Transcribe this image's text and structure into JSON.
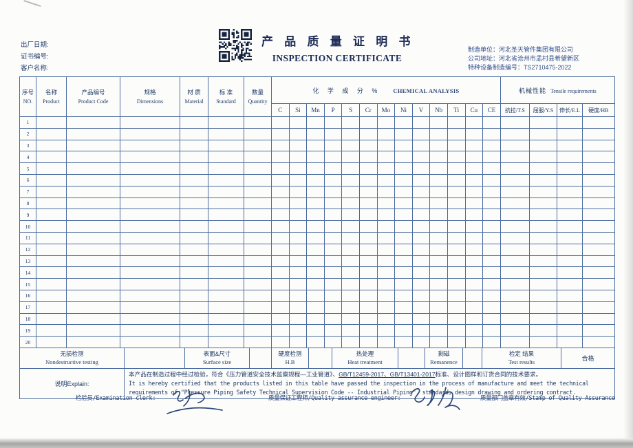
{
  "colors": {
    "ink_navy": "#1c2b55",
    "line_blue": "#4a6b9f",
    "text_blue": "#2b4472"
  },
  "icons": {
    "qr": "qr-code-image"
  },
  "page": {
    "header_left": {
      "date_label": "出厂日期:",
      "cert_no_label": "证书编号:",
      "customer_label": "客户名称:"
    },
    "title": {
      "cn": "产 品 质 量 证 明 书",
      "en": "INSPECTION CERTIFICATE"
    },
    "header_right": {
      "manufacturer": "制造单位：河北圣天管件集团有限公司",
      "address": "公司地址：河北省沧州市孟村县希望新区",
      "equipment_no": "特种设备制造编号：TS2710475-2022"
    }
  },
  "table": {
    "columns": [
      {
        "cn": "序号",
        "en": "NO."
      },
      {
        "cn": "名称",
        "en": "Product"
      },
      {
        "cn": "产品编号",
        "en": "Product Code"
      },
      {
        "cn": "规格",
        "en": "Dimensions"
      },
      {
        "cn": "材 质",
        "en": "Material"
      },
      {
        "cn": "标 准",
        "en": "Standard"
      },
      {
        "cn": "数量",
        "en": "Quantity"
      }
    ],
    "chemical": {
      "title_cn": "化 学 成 分 %",
      "title_en": "CHEMICAL ANALYSIS",
      "elements": [
        "C",
        "Si",
        "Mn",
        "P",
        "S",
        "Cr",
        "Mo",
        "Ni",
        "V",
        "Nb",
        "Ti",
        "Cu",
        "CE"
      ]
    },
    "mechanical": {
      "title_cn": "机械性能",
      "title_en": "Tensile requirements",
      "columns": [
        "抗拉/T.S",
        "屈服/Y.S",
        "伸长/E.L",
        "硬度/HB"
      ]
    },
    "row_numbers": [
      "1",
      "2",
      "3",
      "4",
      "5",
      "6",
      "7",
      "8",
      "9",
      "10",
      "11",
      "12",
      "13",
      "14",
      "15",
      "16",
      "17",
      "18",
      "19",
      "20"
    ]
  },
  "summary": {
    "ndt": {
      "cn": "无损检测",
      "en": "Nondestructive testing"
    },
    "surface": {
      "cn": "表面&尺寸",
      "en": "Surface size"
    },
    "hardness": {
      "cn": "硬度检测",
      "en": "H.B"
    },
    "heat": {
      "cn": "热处理",
      "en": "Heat treatment"
    },
    "remanence": {
      "cn": "剩磁",
      "en": "Remanence"
    },
    "result": {
      "cn": "检定 结果",
      "en": "Test results"
    },
    "result_value": "合格"
  },
  "explain": {
    "label": "说明Explain:",
    "cn_pre": "本产品在制造过程中经过检验，符合《压力管道安全技术监察规程—工业管道》、",
    "cn_underlined": "GB/T12459-2017、GB/T13401-2017",
    "cn_post": "标准、设计图样和订货合同的技术要求。",
    "en_line1": "It is hereby certified that the products listed in this table have passed the inspection in the process of manufacture and meet the technical",
    "en_line2": "requirements of \"Pressure Piping Safety Technical Supervision Code -- Industrial Piping\", standard, design drawing and ordering contract."
  },
  "signatures": {
    "examiner_label": "检验员/Examination clerk:",
    "qa_label": "质量保证工程师/Quality assurance engineer:",
    "stamp_label": "质量部门盖章有效/Stamp of Quality Assurance"
  }
}
